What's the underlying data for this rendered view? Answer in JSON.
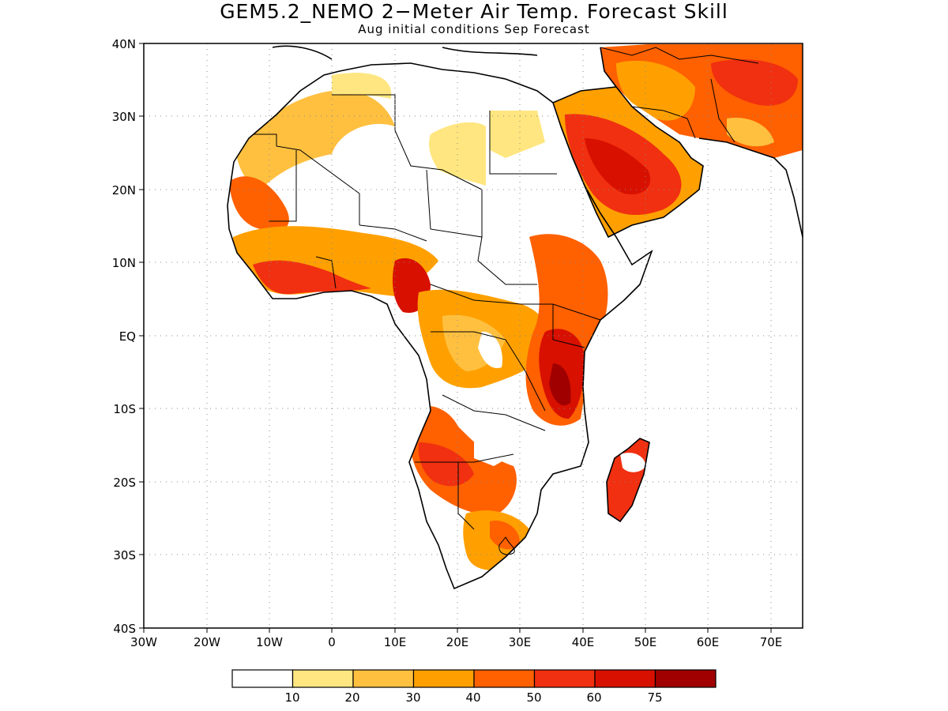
{
  "title": "GEM5.2_NEMO 2−Meter Air Temp. Forecast Skill",
  "subtitle": "Aug initial conditions  Sep Forecast",
  "map": {
    "lat_ticks": [
      "40N",
      "30N",
      "20N",
      "10N",
      "EQ",
      "10S",
      "20S",
      "30S",
      "40S"
    ],
    "lon_ticks": [
      "30W",
      "20W",
      "10W",
      "0",
      "10E",
      "20E",
      "30E",
      "40E",
      "50E",
      "60E",
      "70E"
    ],
    "lon_range": [
      -30,
      75
    ],
    "lat_range": [
      -40,
      40
    ],
    "gridlines": "dotted"
  },
  "colorbar": {
    "colors": [
      "#ffffff",
      "#ffe680",
      "#ffc040",
      "#ffa000",
      "#ff6000",
      "#f03010",
      "#d81000",
      "#a00000"
    ],
    "labels": [
      "10",
      "20",
      "30",
      "40",
      "50",
      "60",
      "75"
    ]
  }
}
